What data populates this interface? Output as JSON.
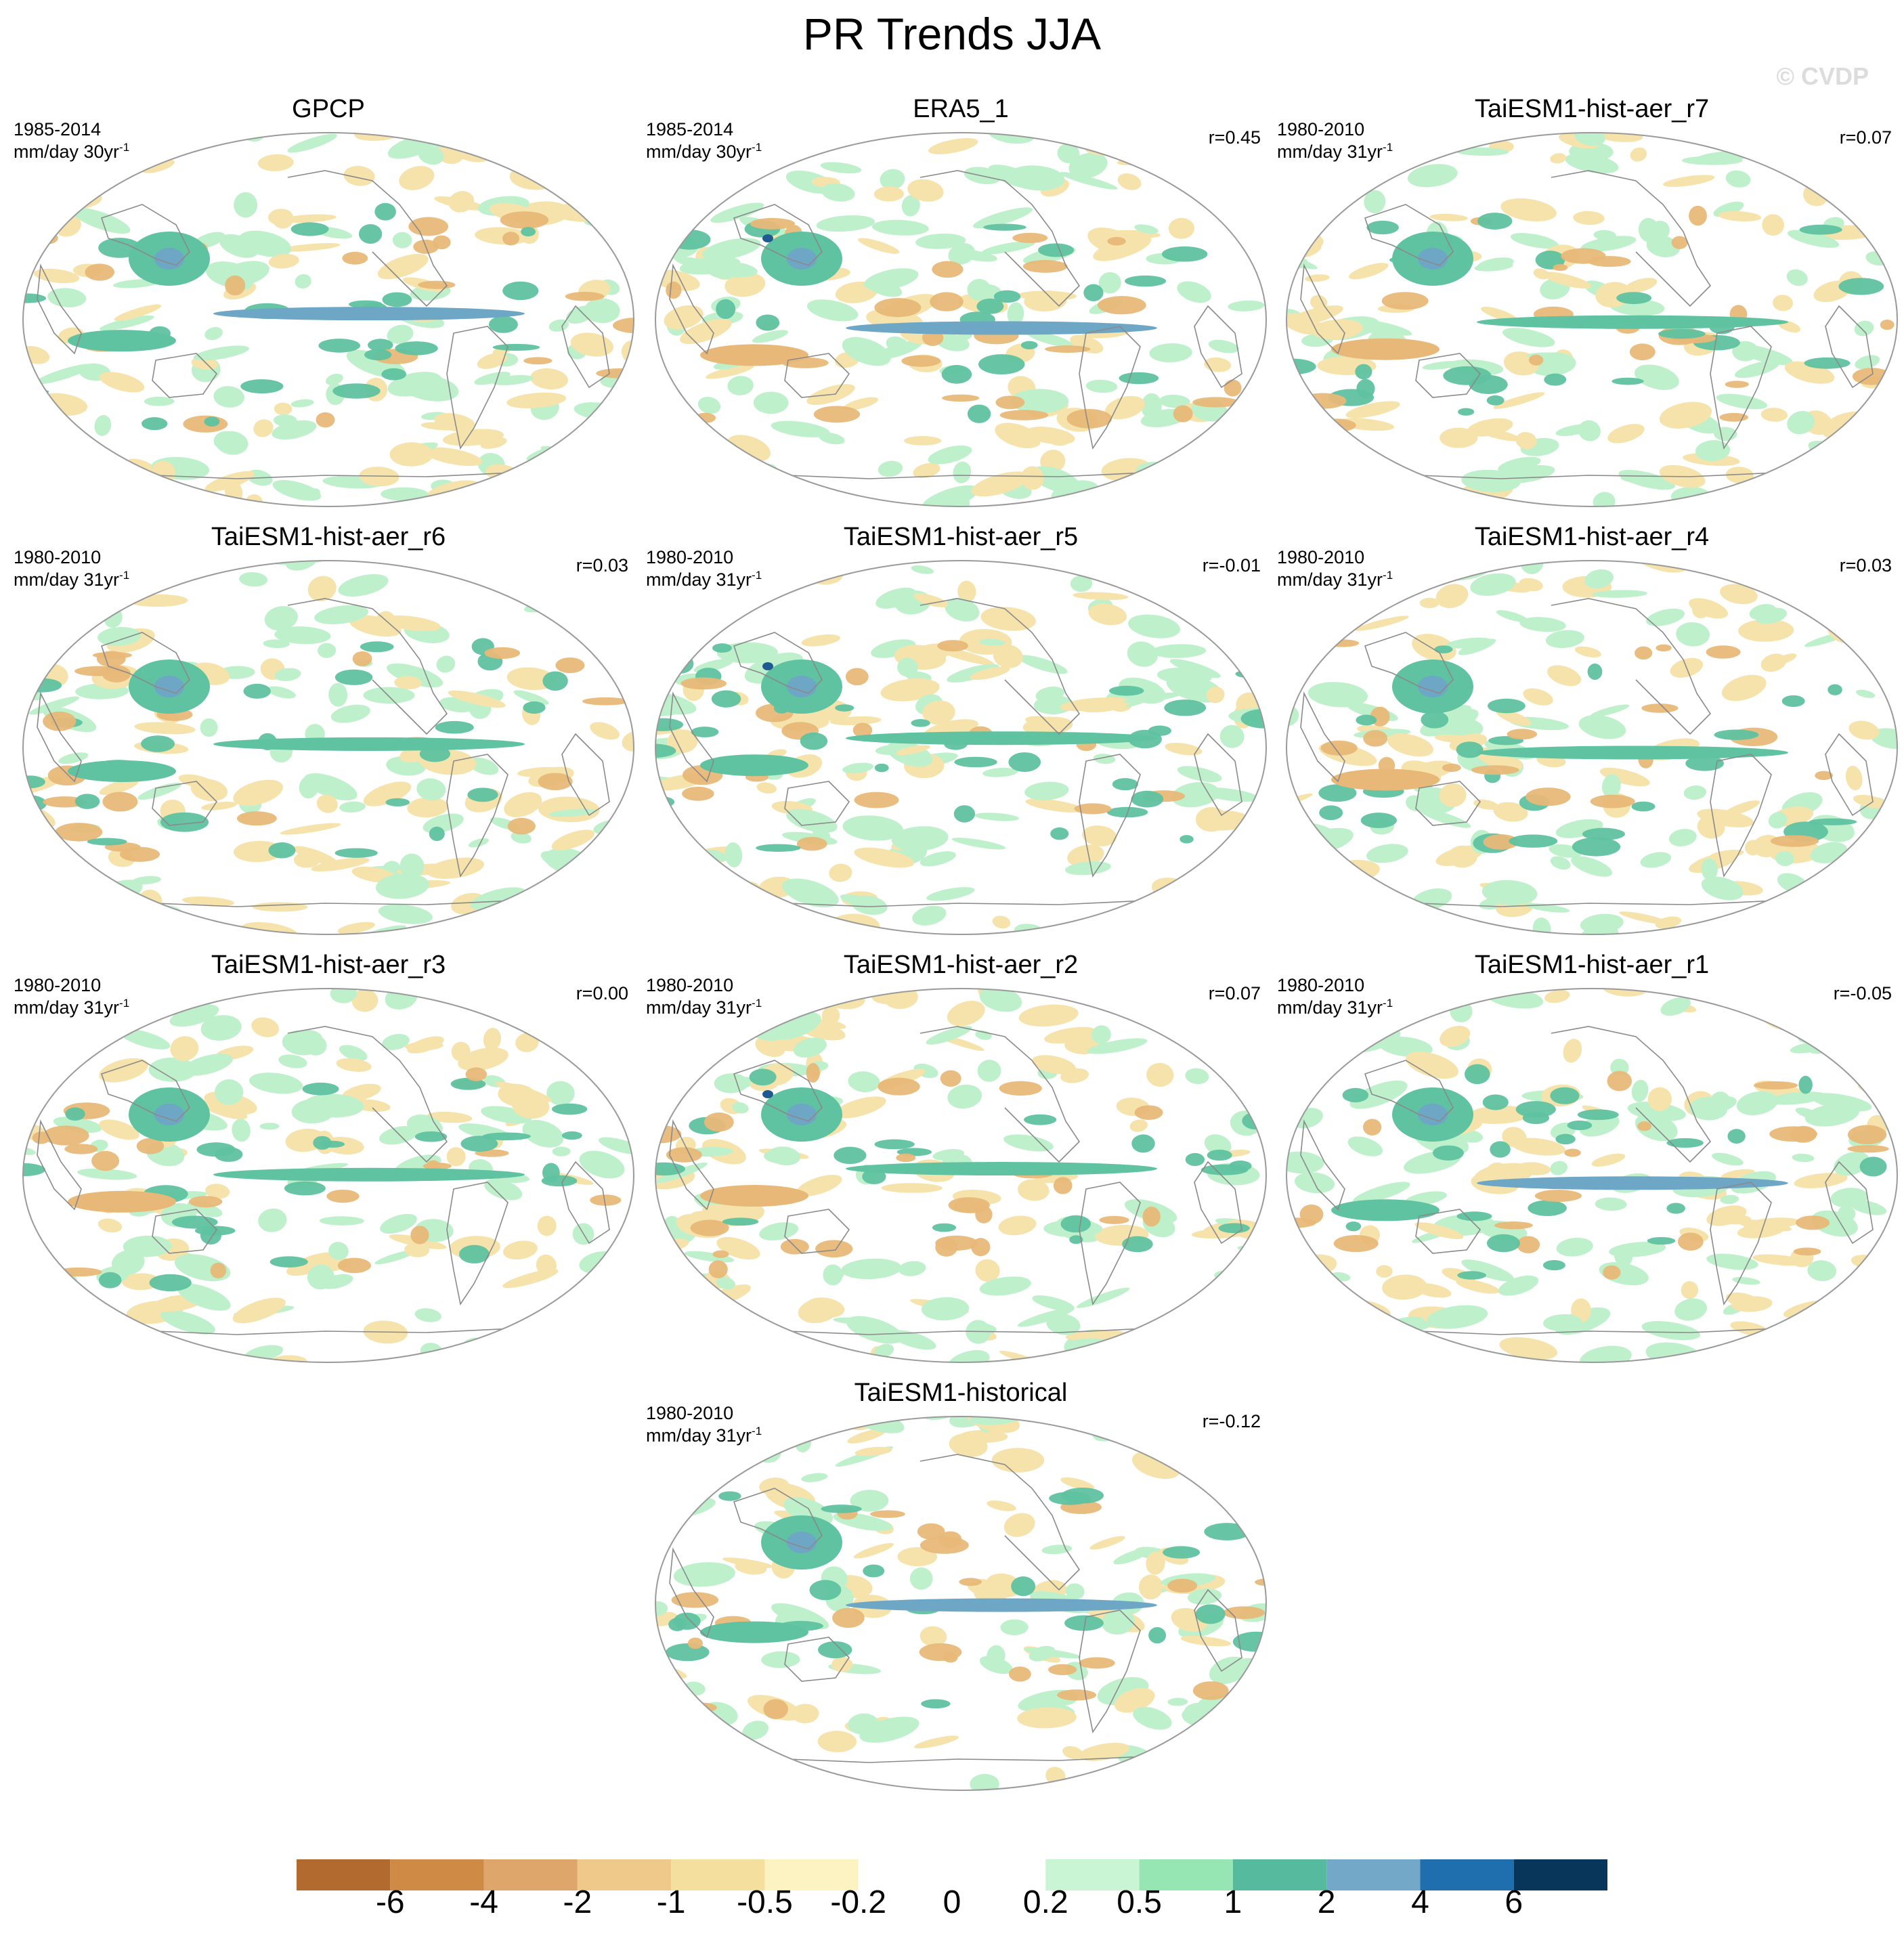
{
  "title": "PR Trends JJA",
  "watermark": "© CVDP",
  "panels": [
    {
      "title": "GPCP",
      "period": "1985-2014",
      "units": "mm/day 30yr",
      "units_exp": "-1",
      "r": ""
    },
    {
      "title": "ERA5_1",
      "period": "1985-2014",
      "units": "mm/day 30yr",
      "units_exp": "-1",
      "r": "r=0.45"
    },
    {
      "title": "TaiESM1-hist-aer_r7",
      "period": "1980-2010",
      "units": "mm/day 31yr",
      "units_exp": "-1",
      "r": "r=0.07"
    },
    {
      "title": "TaiESM1-hist-aer_r6",
      "period": "1980-2010",
      "units": "mm/day 31yr",
      "units_exp": "-1",
      "r": "r=0.03"
    },
    {
      "title": "TaiESM1-hist-aer_r5",
      "period": "1980-2010",
      "units": "mm/day 31yr",
      "units_exp": "-1",
      "r": "r=-0.01"
    },
    {
      "title": "TaiESM1-hist-aer_r4",
      "period": "1980-2010",
      "units": "mm/day 31yr",
      "units_exp": "-1",
      "r": "r=0.03"
    },
    {
      "title": "TaiESM1-hist-aer_r3",
      "period": "1980-2010",
      "units": "mm/day 31yr",
      "units_exp": "-1",
      "r": "r=0.00"
    },
    {
      "title": "TaiESM1-hist-aer_r2",
      "period": "1980-2010",
      "units": "mm/day 31yr",
      "units_exp": "-1",
      "r": "r=0.07"
    },
    {
      "title": "TaiESM1-hist-aer_r1",
      "period": "1980-2010",
      "units": "mm/day 31yr",
      "units_exp": "-1",
      "r": "r=-0.05"
    },
    {
      "title": "TaiESM1-historical",
      "period": "1980-2010",
      "units": "mm/day 31yr",
      "units_exp": "-1",
      "r": "r=-0.12"
    }
  ],
  "colorbar": {
    "colors": [
      "#b36a2e",
      "#cf8a45",
      "#dea66a",
      "#efc98a",
      "#f5df9f",
      "#fdf3c2",
      "#ffffff",
      "#ffffff",
      "#c9f5d4",
      "#96e6b4",
      "#56bb9e",
      "#73a8c8",
      "#1f6fae",
      "#08365a"
    ],
    "labels": [
      "-6",
      "-4",
      "-2",
      "-1",
      "-0.5",
      "-0.2",
      "0",
      "0.2",
      "0.5",
      "1",
      "2",
      "4",
      "6"
    ]
  },
  "palette": {
    "dry_strong": "#c47a3a",
    "dry": "#e8b878",
    "dry_light": "#f6e3ac",
    "wet_light": "#bff0cc",
    "wet": "#5fc2a0",
    "wet_strong": "#6ea6c6",
    "wet_max": "#1e5a8f",
    "coast": "#8a8a8a",
    "outline": "#9a9a9a"
  }
}
